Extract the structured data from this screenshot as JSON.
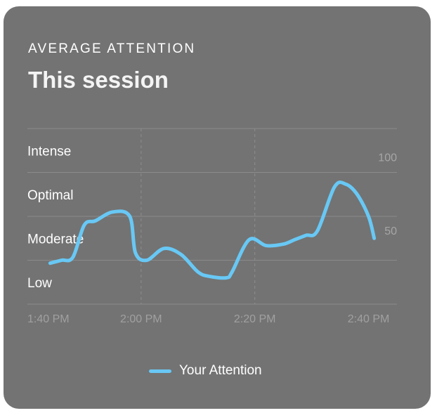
{
  "card": {
    "eyebrow": "AVERAGE ATTENTION",
    "title": "This session"
  },
  "chart_data": {
    "type": "line",
    "title": "This session",
    "xlabel": "",
    "ylabel": "",
    "x_ticks": [
      "1:40 PM",
      "2:00 PM",
      "2:20 PM",
      "2:40 PM"
    ],
    "x_range": [
      "1:40 PM",
      "2:45 PM"
    ],
    "y_ticks": [
      50,
      100
    ],
    "ylim": [
      0,
      120
    ],
    "y_zone_labels": [
      "Intense",
      "Optimal",
      "Moderate",
      "Low"
    ],
    "grid": true,
    "legend_position": "bottom-center",
    "series": [
      {
        "name": "Your Attention",
        "color": "#68c8f5",
        "x": [
          "1:44 PM",
          "1:46 PM",
          "1:48 PM",
          "1:50 PM",
          "1:52 PM",
          "1:55 PM",
          "1:58 PM",
          "1:59 PM",
          "2:01 PM",
          "2:04 PM",
          "2:07 PM",
          "2:10 PM",
          "2:12 PM",
          "2:15 PM",
          "2:16 PM",
          "2:19 PM",
          "2:22 PM",
          "2:25 PM",
          "2:27 PM",
          "2:29 PM",
          "2:31 PM",
          "2:34 PM",
          "2:36 PM",
          "2:38 PM",
          "2:40 PM",
          "2:41 PM"
        ],
        "values": [
          28,
          30,
          32,
          54,
          57,
          63,
          60,
          35,
          30,
          38,
          34,
          22,
          19,
          18,
          22,
          44,
          40,
          41,
          44,
          47,
          50,
          80,
          82,
          75,
          60,
          45
        ]
      }
    ]
  }
}
